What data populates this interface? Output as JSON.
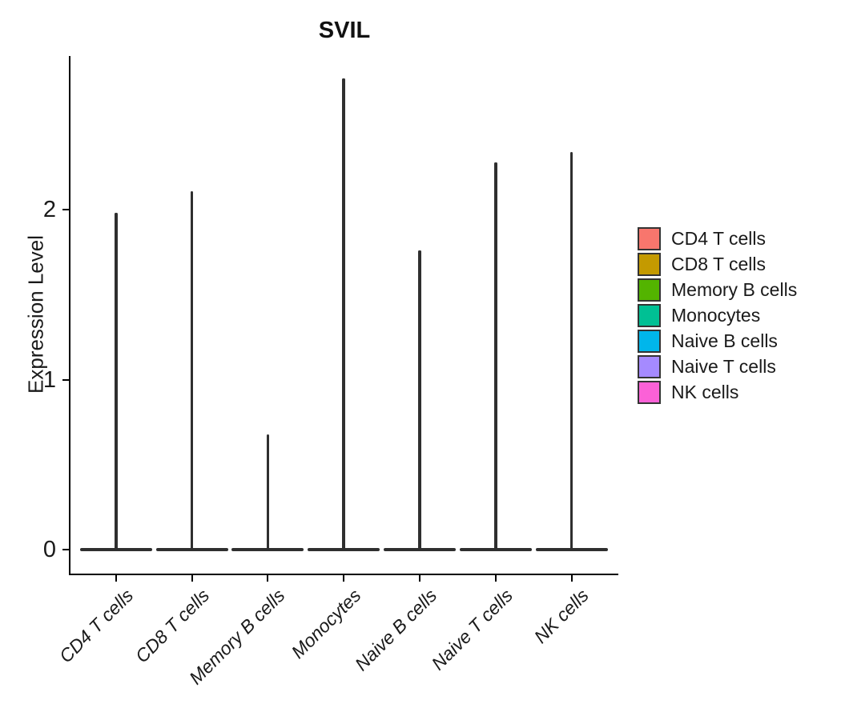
{
  "chart_data": {
    "type": "violin",
    "title": "SVIL",
    "ylabel": "Expression Level",
    "categories": [
      "CD4 T cells",
      "CD8 T cells",
      "Memory B cells",
      "Monocytes",
      "Naive B cells",
      "Naive T cells",
      "NK cells"
    ],
    "max_expression": [
      1.98,
      2.11,
      0.68,
      2.77,
      1.76,
      2.28,
      2.34
    ],
    "baseline_value": 0,
    "yticks": [
      0,
      1,
      2
    ],
    "ylim": [
      0,
      2.9
    ],
    "grid": false,
    "legend_position": "right",
    "legend": [
      {
        "label": "CD4 T cells",
        "color": "#F8766D"
      },
      {
        "label": "CD8 T cells",
        "color": "#C49A00"
      },
      {
        "label": "Memory B cells",
        "color": "#53B400"
      },
      {
        "label": "Monocytes",
        "color": "#00C094"
      },
      {
        "label": "Naive B cells",
        "color": "#00B6EB"
      },
      {
        "label": "Naive T cells",
        "color": "#A58AFF"
      },
      {
        "label": "NK cells",
        "color": "#FB61D7"
      }
    ],
    "violin_outline_color": "#2f2f2f",
    "axis_color": "#000000",
    "text_color": "#1a1a1a"
  }
}
